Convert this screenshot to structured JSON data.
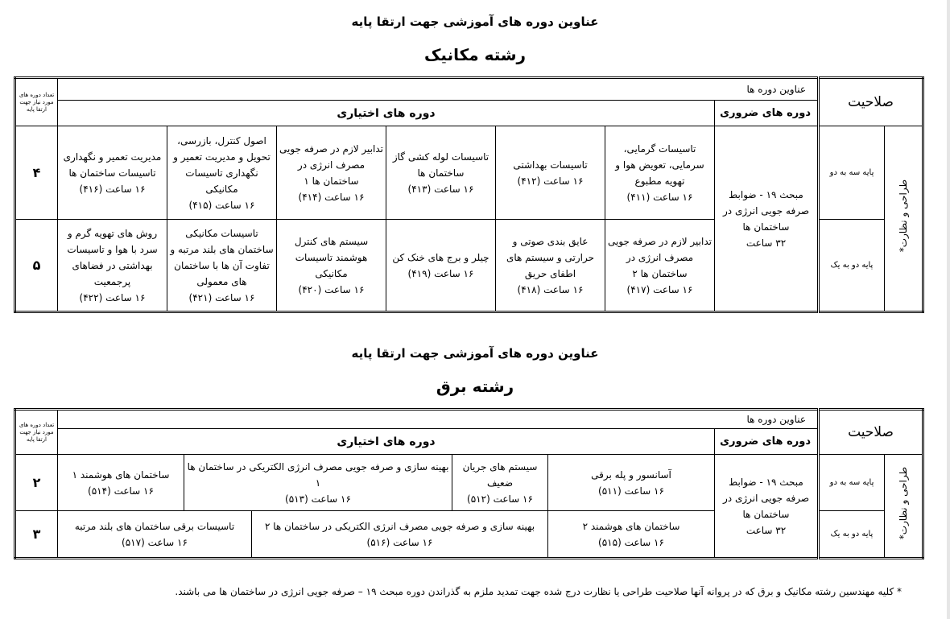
{
  "mechanical": {
    "title": "عناوین دوره های آموزشی جهت ارتقا پایه",
    "field": "رشته مکانیک",
    "header": {
      "qualification": "صلاحیت",
      "course_titles": "عناوین دوره ها",
      "mandatory": "دوره های ضروری",
      "elective": "دوره های اختیاری",
      "count": "تعداد دوره های مورد نیاز جهت ارتقا پایه"
    },
    "category": "طراحی و نظارت*",
    "mandatory_course": [
      "مبحث ۱۹ - ضوابط",
      "صرفه جویی انرژی در",
      "ساختمان ها",
      "۳۲ ساعت"
    ],
    "rows": [
      {
        "level": "پایه سه به دو",
        "count": "۴",
        "courses": [
          {
            "name": "تاسیسات گرمایی، سرمایی، تعویض هوا و تهویه مطبوع",
            "hours": "۱۶ ساعت (۴۱۱)"
          },
          {
            "name": "تاسیسات بهداشتی",
            "hours": "۱۶ ساعت (۴۱۲)"
          },
          {
            "name": "تاسیسات لوله کشی گاز ساختمان ها",
            "hours": "۱۶ ساعت (۴۱۳)"
          },
          {
            "name": "تدابیر لازم در صرفه جویی مصرف انرژی در ساختمان ها ۱",
            "hours": "۱۶ ساعت (۴۱۴)"
          },
          {
            "name": "اصول کنترل، بازرسی، تحویل و مدیریت تعمیر و نگهداری تاسیسات مکانیکی",
            "hours": "۱۶ ساعت (۴۱۵)"
          },
          {
            "name": "مدیریت تعمیر و نگهداری تاسیسات ساختمان ها",
            "hours": "۱۶ ساعت (۴۱۶)"
          }
        ]
      },
      {
        "level": "پایه دو به یک",
        "count": "۵",
        "courses": [
          {
            "name": "تدابیر لازم در صرفه جویی مصرف انرژی در ساختمان ها ۲",
            "hours": "۱۶ ساعت (۴۱۷)"
          },
          {
            "name": "عایق بندی صوتی و حرارتی و سیستم های اطفای حریق",
            "hours": "۱۶ ساعت (۴۱۸)"
          },
          {
            "name": "چیلر و برج های خنک کن",
            "hours": "۱۶ ساعت (۴۱۹)"
          },
          {
            "name": "سیستم های کنترل هوشمند تاسیسات مکانیکی",
            "hours": "۱۶ ساعت (۴۲۰)"
          },
          {
            "name": "تاسیسات مکانیکی ساختمان های بلند مرتبه و تفاوت آن ها با ساختمان های معمولی",
            "hours": "۱۶ ساعت (۴۲۱)"
          },
          {
            "name": "روش های تهویه گرم و سرد با هوا و تاسیسات بهداشتی در فضاهای پرجمعیت",
            "hours": "۱۶ ساعت (۴۲۲)"
          }
        ]
      }
    ]
  },
  "electrical": {
    "title": "عناوین دوره های آموزشی جهت ارتقا پایه",
    "field": "رشته برق",
    "header": {
      "qualification": "صلاحیت",
      "course_titles": "عناوین دوره ها",
      "mandatory": "دوره های ضروری",
      "elective": "دوره های اختیاری",
      "count": "تعداد دوره های مورد نیاز جهت ارتقا پایه"
    },
    "category": "طراحی و نظارت*",
    "mandatory_course": [
      "مبحث ۱۹ - ضوابط",
      "صرفه جویی انرژی در",
      "ساختمان ها",
      "۳۲ ساعت"
    ],
    "rows": [
      {
        "level": "پایه سه به دو",
        "count": "۲",
        "courses": [
          {
            "name": "آسانسور و پله برقی",
            "hours": "۱۶ ساعت (۵۱۱)"
          },
          {
            "name": "سیستم های جریان ضعیف",
            "hours": "۱۶ ساعت (۵۱۲)"
          },
          {
            "name": "بهینه سازی و صرفه جویی مصرف انرژی الکتریکی در ساختمان ها ۱",
            "hours": "۱۶ ساعت (۵۱۳)"
          },
          {
            "name": "ساختمان های هوشمند ۱",
            "hours": "۱۶ ساعت (۵۱۴)"
          }
        ]
      },
      {
        "level": "پایه دو به یک",
        "count": "۳",
        "courses": [
          {
            "name": "ساختمان های هوشمند ۲",
            "hours": "۱۶ ساعت (۵۱۵)"
          },
          {
            "name": "بهینه سازی و صرفه جویی مصرف انرژی الکتریکی در ساختمان ها ۲",
            "hours": "۱۶ ساعت (۵۱۶)"
          },
          {
            "name": "تاسیسات برقی ساختمان های بلند مرتبه",
            "hours": "۱۶ ساعت (۵۱۷)"
          }
        ]
      }
    ]
  },
  "footnote": "* کلیه مهندسین رشته مکانیک و برق که در پروانه آنها صلاحیت طراحی یا نظارت درج شده جهت تمدید ملزم به گذراندن دوره مبحث ۱۹ – صرفه جویی انرژی در ساختمان ها می باشند."
}
